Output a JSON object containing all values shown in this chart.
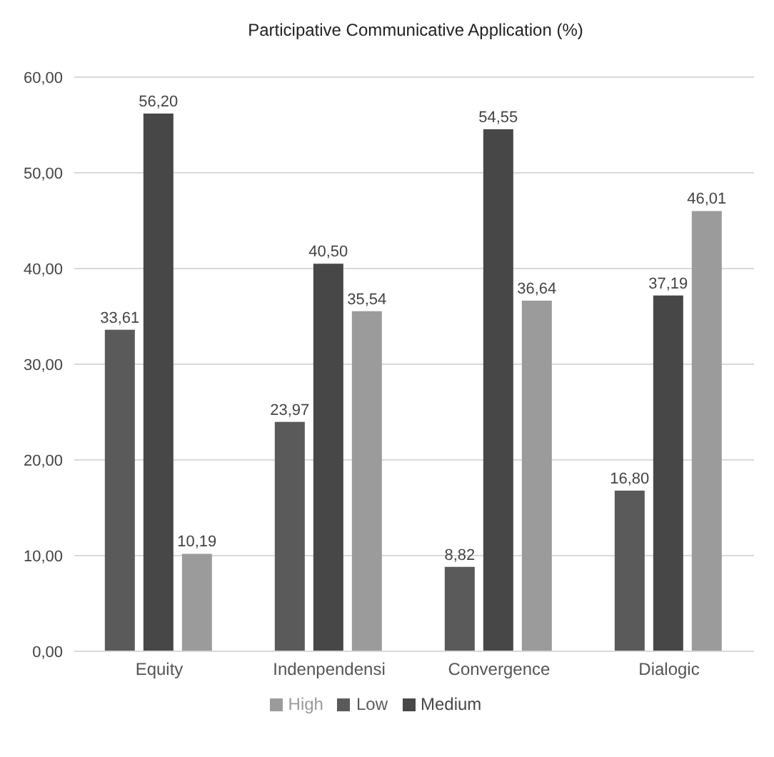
{
  "chart_data": {
    "type": "bar",
    "title": "Participative Communicative Application (%)",
    "categories": [
      "Equity",
      "Indenpendensi",
      "Convergence",
      "Dialogic"
    ],
    "series": [
      {
        "name": "Low",
        "color": "#5a5a5a",
        "values": [
          33.61,
          23.97,
          8.82,
          16.8
        ],
        "value_labels": [
          "33,61",
          "23,97",
          "8,82",
          "16,80"
        ]
      },
      {
        "name": "Medium",
        "color": "#474747",
        "values": [
          56.2,
          40.5,
          54.55,
          37.19
        ],
        "value_labels": [
          "56,20",
          "40,50",
          "54,55",
          "37,19"
        ]
      },
      {
        "name": "High",
        "color": "#9b9b9b",
        "values": [
          10.19,
          35.54,
          36.64,
          46.01
        ],
        "value_labels": [
          "10,19",
          "35,54",
          "36,64",
          "46,01"
        ]
      }
    ],
    "ylim": [
      0,
      60
    ],
    "yticks": [
      {
        "value": 0,
        "label": "0,00"
      },
      {
        "value": 10,
        "label": "10,00"
      },
      {
        "value": 20,
        "label": "20,00"
      },
      {
        "value": 30,
        "label": "30,00"
      },
      {
        "value": 40,
        "label": "40,00"
      },
      {
        "value": 50,
        "label": "50,00"
      },
      {
        "value": 60,
        "label": "60,00"
      }
    ],
    "grid": "y",
    "legend": "bottom"
  }
}
